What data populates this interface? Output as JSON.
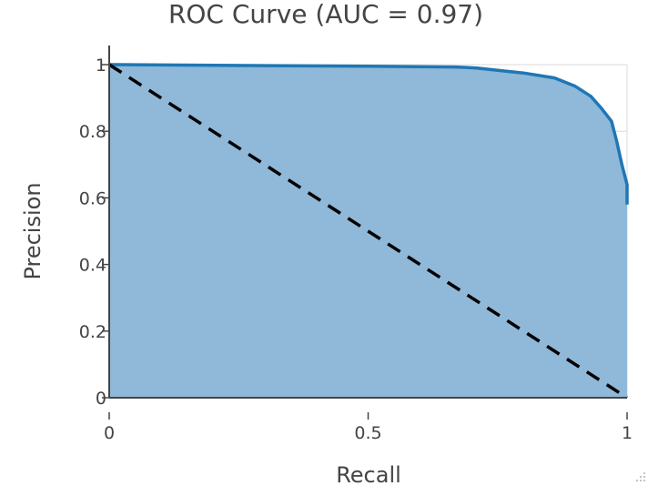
{
  "chart_data": {
    "type": "area",
    "title": "ROC Curve (AUC = 0.97)",
    "xlabel": "Recall",
    "ylabel": "Precision",
    "xlim": [
      0,
      1
    ],
    "ylim": [
      0,
      1
    ],
    "x_ticks": [
      "0",
      "0.5",
      "1"
    ],
    "x_tick_values": [
      0,
      0.5,
      1
    ],
    "y_ticks": [
      "0",
      "0.2",
      "0.4",
      "0.6",
      "0.8",
      "1"
    ],
    "y_tick_values": [
      0,
      0.2,
      0.4,
      0.6,
      0.8,
      1
    ],
    "grid": true,
    "legend": "none",
    "series": [
      {
        "style": "solid filled area",
        "color": "#1f77b4",
        "fill_color": "#8fb8d9",
        "x": [
          0,
          0.3,
          0.5,
          0.67,
          0.71,
          0.75,
          0.8,
          0.86,
          0.9,
          0.93,
          0.95,
          0.97,
          0.98,
          0.99,
          1.0,
          1.0
        ],
        "y": [
          1.0,
          0.997,
          0.995,
          0.993,
          0.99,
          0.983,
          0.975,
          0.96,
          0.935,
          0.905,
          0.87,
          0.83,
          0.77,
          0.7,
          0.64,
          0.58
        ]
      },
      {
        "style": "dashed reference line",
        "color": "#000000",
        "x": [
          0,
          1
        ],
        "y": [
          1,
          0
        ]
      }
    ]
  }
}
